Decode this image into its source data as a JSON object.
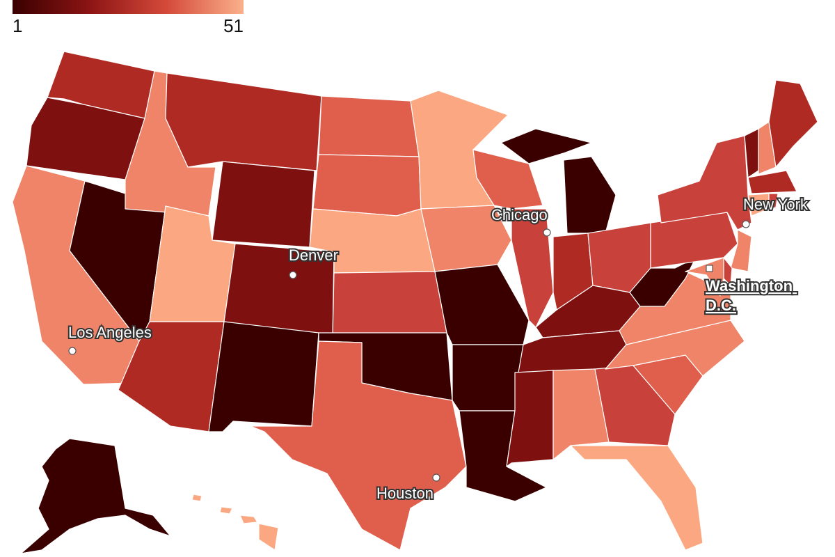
{
  "legend": {
    "min_label": "1",
    "max_label": "51",
    "color_low": "#3a0000",
    "color_high": "#fbb08c"
  },
  "cities": [
    {
      "name": "Chicago"
    },
    {
      "name": "New York"
    },
    {
      "name": "Denver"
    },
    {
      "name": "Washington D.C."
    },
    {
      "name": "Los Angeles"
    },
    {
      "name": "Houston"
    }
  ],
  "colors": {
    "rank_darkest": "#3a0000",
    "rank_dark": "#6a0a0a",
    "rank_deep": "#7e1010",
    "rank_mid_dark": "#b02a24",
    "rank_mid": "#c8413a",
    "rank_mid_light": "#df5e4c",
    "rank_light": "#ef8468",
    "rank_lightest": "#fba882"
  }
}
